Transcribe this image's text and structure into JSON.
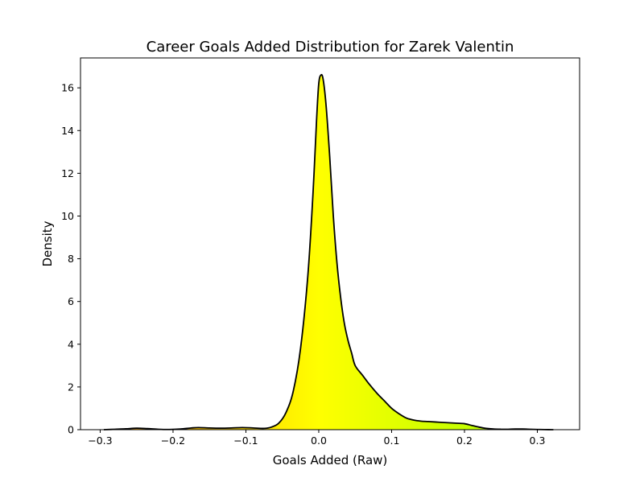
{
  "chart_data": {
    "type": "area",
    "title": "Career Goals Added Distribution for Zarek Valentin",
    "xlabel": "Goals Added (Raw)",
    "ylabel": "Density",
    "xlim": [
      -0.327,
      0.358
    ],
    "ylim": [
      0,
      17.4
    ],
    "x_ticks": [
      -0.3,
      -0.2,
      -0.1,
      0.0,
      0.1,
      0.2,
      0.3
    ],
    "x_tick_labels": [
      "−0.3",
      "−0.2",
      "−0.1",
      "0.0",
      "0.1",
      "0.2",
      "0.3"
    ],
    "y_ticks": [
      0,
      2,
      4,
      6,
      8,
      10,
      12,
      14,
      16
    ],
    "y_tick_labels": [
      "0",
      "2",
      "4",
      "6",
      "8",
      "10",
      "12",
      "14",
      "16"
    ],
    "grid": false,
    "legend": "none",
    "line_color": "#000000",
    "fill_gradient": {
      "from": "#ff9900",
      "mid": "#ffff00",
      "to": "#aaff00",
      "low_x": -0.3,
      "high_x": 0.3
    },
    "series": [
      {
        "x": [
          -0.295,
          -0.28,
          -0.265,
          -0.25,
          -0.235,
          -0.22,
          -0.205,
          -0.19,
          -0.175,
          -0.165,
          -0.15,
          -0.135,
          -0.12,
          -0.105,
          -0.09,
          -0.075,
          -0.065,
          -0.055,
          -0.045,
          -0.035,
          -0.025,
          -0.015,
          -0.008,
          -0.003,
          0.0,
          0.003,
          0.006,
          0.01,
          0.015,
          0.02,
          0.025,
          0.03,
          0.035,
          0.04,
          0.045,
          0.05,
          0.06,
          0.07,
          0.08,
          0.09,
          0.1,
          0.11,
          0.12,
          0.13,
          0.14,
          0.15,
          0.16,
          0.17,
          0.18,
          0.19,
          0.2,
          0.21,
          0.22,
          0.23,
          0.24,
          0.25,
          0.26,
          0.27,
          0.28,
          0.29,
          0.3,
          0.31,
          0.322
        ],
        "y": [
          0.0,
          0.02,
          0.04,
          0.07,
          0.05,
          0.02,
          0.01,
          0.03,
          0.08,
          0.1,
          0.08,
          0.07,
          0.08,
          0.1,
          0.08,
          0.06,
          0.12,
          0.3,
          0.8,
          1.8,
          3.8,
          7.2,
          11.0,
          14.5,
          16.2,
          16.6,
          16.4,
          15.2,
          12.8,
          10.0,
          7.8,
          6.2,
          5.0,
          4.2,
          3.6,
          3.0,
          2.55,
          2.1,
          1.7,
          1.35,
          1.0,
          0.75,
          0.55,
          0.45,
          0.4,
          0.38,
          0.36,
          0.34,
          0.32,
          0.3,
          0.28,
          0.2,
          0.12,
          0.06,
          0.03,
          0.02,
          0.02,
          0.03,
          0.03,
          0.02,
          0.01,
          0.005,
          0.0
        ]
      }
    ]
  }
}
